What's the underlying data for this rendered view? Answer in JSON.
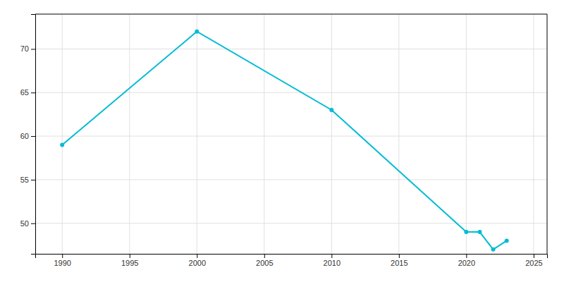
{
  "chart_data": {
    "type": "line",
    "x": [
      1990,
      2000,
      2010,
      2020,
      2021,
      2022,
      2023
    ],
    "values": [
      59,
      72,
      63,
      49,
      49,
      47,
      48
    ],
    "color": "#00bcd4",
    "marker": "circle",
    "xlim": [
      1988,
      2026
    ],
    "xticks": [
      1990,
      1995,
      2000,
      2005,
      2010,
      2015,
      2020,
      2025
    ],
    "ylim": [
      46.5,
      74
    ],
    "yticks": [
      50,
      55,
      60,
      65,
      70
    ],
    "grid": true
  }
}
